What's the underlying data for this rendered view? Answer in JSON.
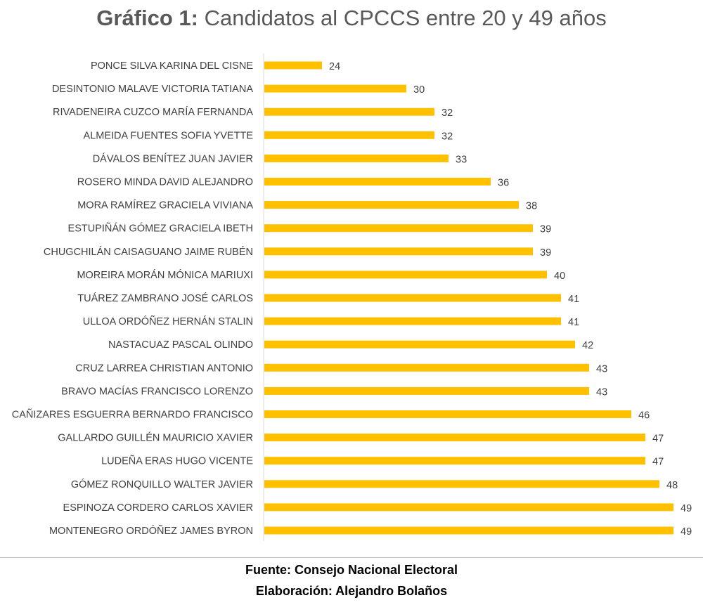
{
  "chart_data": {
    "type": "bar",
    "orientation": "horizontal",
    "title_prefix": "Gráfico 1:",
    "title_text": "Candidatos al CPCCS entre 20 y 49 años",
    "categories": [
      "PONCE SILVA KARINA DEL CISNE",
      "DESINTONIO MALAVE VICTORIA TATIANA",
      "RIVADENEIRA CUZCO MARÍA FERNANDA",
      "ALMEIDA FUENTES SOFIA YVETTE",
      "DÁVALOS BENÍTEZ JUAN JAVIER",
      "ROSERO MINDA DAVID ALEJANDRO",
      "MORA RAMÍREZ GRACIELA VIVIANA",
      "ESTUPIÑÁN GÓMEZ GRACIELA IBETH",
      "CHUGCHILÁN CAISAGUANO JAIME RUBÉN",
      "MOREIRA MORÁN MÓNICA MARIUXI",
      "TUÁREZ ZAMBRANO JOSÉ CARLOS",
      "ULLOA ORDÓÑEZ HERNÁN STALIN",
      "NASTACUAZ PASCAL OLINDO",
      "CRUZ LARREA CHRISTIAN ANTONIO",
      "BRAVO MACÍAS FRANCISCO LORENZO",
      "CAÑIZARES ESGUERRA BERNARDO FRANCISCO",
      "GALLARDO GUILLÉN MAURICIO XAVIER",
      "LUDEÑA ERAS HUGO VICENTE",
      "GÓMEZ RONQUILLO WALTER JAVIER",
      "ESPINOZA CORDERO CARLOS XAVIER",
      "MONTENEGRO ORDÓÑEZ JAMES BYRON"
    ],
    "values": [
      24,
      30,
      32,
      32,
      33,
      36,
      38,
      39,
      39,
      40,
      41,
      41,
      42,
      43,
      43,
      46,
      47,
      47,
      48,
      49,
      49
    ],
    "xlim": [
      20,
      49
    ],
    "data_labels": true,
    "grid": false,
    "bar_color": "#FFC000"
  },
  "footer": {
    "source": "Fuente: Consejo Nacional Electoral",
    "author": "Elaboración: Alejandro Bolaños"
  }
}
